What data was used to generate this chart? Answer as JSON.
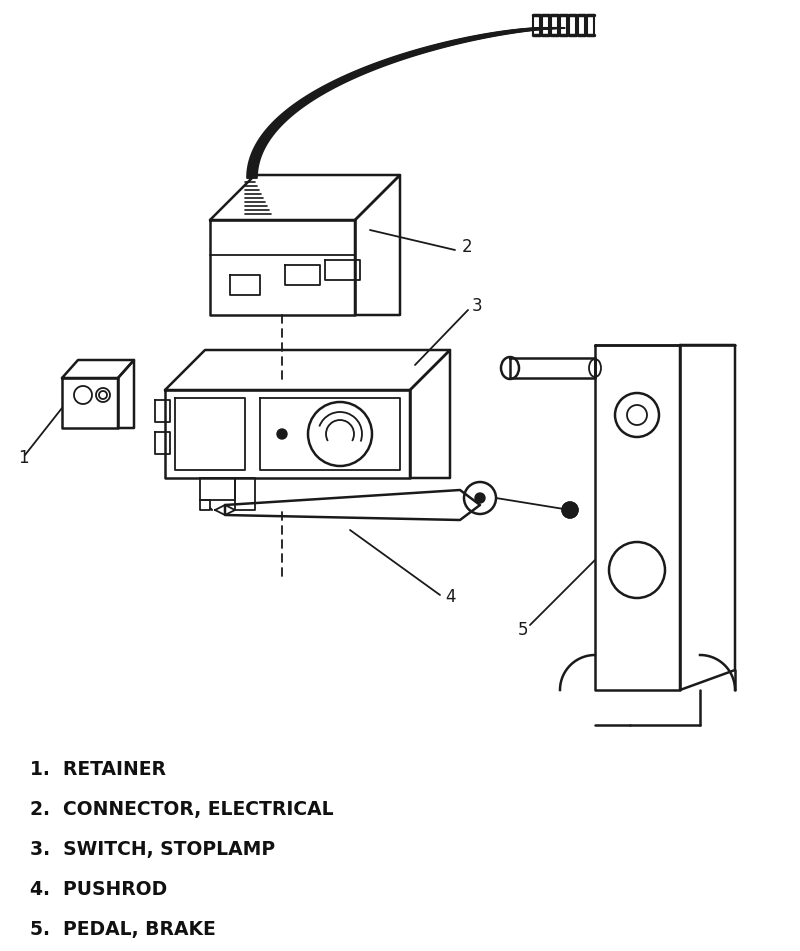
{
  "background_color": "#ffffff",
  "line_color": "#1a1a1a",
  "text_color": "#111111",
  "figsize": [
    8.0,
    9.51
  ],
  "dpi": 100,
  "legend_items": [
    "1.  RETAINER",
    "2.  CONNECTOR, ELECTRICAL",
    "3.  SWITCH, STOPLAMP",
    "4.  PUSHROD",
    "5.  PEDAL, BRAKE"
  ],
  "legend_fontsize": 13.5
}
